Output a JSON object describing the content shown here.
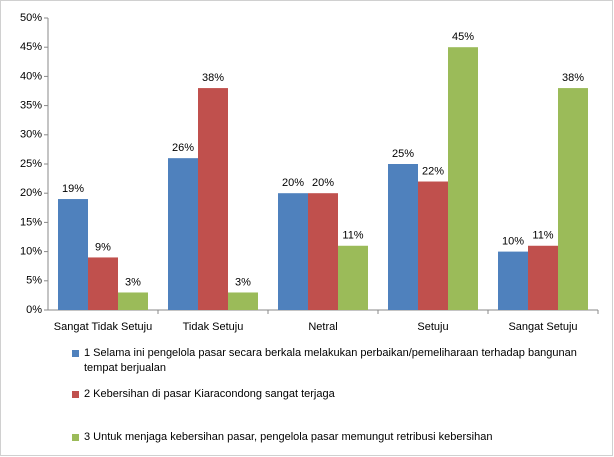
{
  "chart_data": {
    "type": "bar",
    "categories": [
      "Sangat Tidak Setuju",
      "Tidak Setuju",
      "Netral",
      "Setuju",
      "Sangat Setuju"
    ],
    "series": [
      {
        "name": "1 Selama ini pengelola pasar secara berkala melakukan perbaikan/pemeliharaan terhadap bangunan tempat berjualan",
        "color": "#4f81bd",
        "values": [
          19,
          26,
          20,
          25,
          10
        ],
        "value_labels": [
          "19%",
          "26%",
          "20%",
          "25%",
          "10%"
        ]
      },
      {
        "name": "2 Kebersihan di pasar Kiaracondong sangat terjaga",
        "color": "#c0504d",
        "values": [
          9,
          38,
          20,
          22,
          11
        ],
        "value_labels": [
          "9%",
          "38%",
          "20%",
          "22%",
          "11%"
        ]
      },
      {
        "name": "3 Untuk menjaga kebersihan pasar, pengelola pasar memungut retribusi kebersihan",
        "color": "#9bbb59",
        "values": [
          3,
          3,
          11,
          45,
          38
        ],
        "value_labels": [
          "3%",
          "3%",
          "11%",
          "45%",
          "38%"
        ]
      }
    ],
    "ylim": [
      0,
      50
    ],
    "yticks": [
      {
        "value": 0,
        "label": "0%"
      },
      {
        "value": 5,
        "label": "5%"
      },
      {
        "value": 10,
        "label": "10%"
      },
      {
        "value": 15,
        "label": "15%"
      },
      {
        "value": 20,
        "label": "20%"
      },
      {
        "value": 25,
        "label": "25%"
      },
      {
        "value": 30,
        "label": "30%"
      },
      {
        "value": 35,
        "label": "35%"
      },
      {
        "value": 40,
        "label": "40%"
      },
      {
        "value": 45,
        "label": "45%"
      },
      {
        "value": 50,
        "label": "50%"
      }
    ],
    "grid": false,
    "legend": "bottom"
  }
}
